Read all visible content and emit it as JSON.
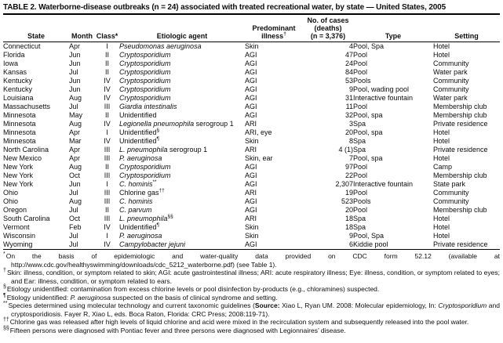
{
  "table": {
    "title": "TABLE 2. Waterborne-disease outbreaks (n = 24) associated with treated recreational water, by state — United States, 2005",
    "columns": [
      {
        "id": "state",
        "lines": [
          [
            {
              "t": "State"
            }
          ]
        ]
      },
      {
        "id": "month",
        "lines": [
          [
            {
              "t": "Month"
            }
          ]
        ]
      },
      {
        "id": "class",
        "lines": [
          [
            {
              "t": "Class*"
            }
          ]
        ]
      },
      {
        "id": "agent",
        "lines": [
          [
            {
              "t": "Etiologic agent"
            }
          ]
        ]
      },
      {
        "id": "illness",
        "lines": [
          [
            {
              "t": "Predominant"
            }
          ],
          [
            {
              "t": "illness"
            },
            {
              "t": "†",
              "sup": true
            }
          ]
        ]
      },
      {
        "id": "cases",
        "lines": [
          [
            {
              "t": "No. of cases"
            }
          ],
          [
            {
              "t": "(deaths)"
            }
          ],
          [
            {
              "t": "(n = 3,376)"
            }
          ]
        ]
      },
      {
        "id": "type",
        "lines": [
          [
            {
              "t": "Type"
            }
          ]
        ]
      },
      {
        "id": "setting",
        "lines": [
          [
            {
              "t": "Setting"
            }
          ]
        ]
      }
    ],
    "rows": [
      {
        "state": "Connecticut",
        "month": "Apr",
        "class": "I",
        "agent": [
          {
            "t": "Pseudomonas aeruginosa",
            "i": true
          }
        ],
        "illness": "Skin",
        "cases": "4",
        "type": "Pool, Spa",
        "setting": "Hotel"
      },
      {
        "state": "Florida",
        "month": "Jun",
        "class": "II",
        "agent": [
          {
            "t": "Cryptosporidium",
            "i": true
          }
        ],
        "illness": "AGI",
        "cases": "47",
        "type": "Pool",
        "setting": "Hotel"
      },
      {
        "state": "Iowa",
        "month": "Jun",
        "class": "II",
        "agent": [
          {
            "t": "Cryptosporidium",
            "i": true
          }
        ],
        "illness": "AGI",
        "cases": "24",
        "type": "Pool",
        "setting": "Community"
      },
      {
        "state": "Kansas",
        "month": "Jul",
        "class": "II",
        "agent": [
          {
            "t": "Cryptosporidium",
            "i": true
          }
        ],
        "illness": "AGI",
        "cases": "84",
        "type": "Pool",
        "setting": "Water park"
      },
      {
        "state": "Kentucky",
        "month": "Jun",
        "class": "IV",
        "agent": [
          {
            "t": "Cryptosporidium",
            "i": true
          }
        ],
        "illness": "AGI",
        "cases": "53",
        "type": "Pools",
        "setting": "Community"
      },
      {
        "state": "Kentucky",
        "month": "Jun",
        "class": "IV",
        "agent": [
          {
            "t": "Cryptosporidium",
            "i": true
          }
        ],
        "illness": "AGI",
        "cases": "9",
        "type": "Pool, wading pool",
        "setting": "Community"
      },
      {
        "state": "Louisiana",
        "month": "Aug",
        "class": "IV",
        "agent": [
          {
            "t": "Cryptosporidium",
            "i": true
          }
        ],
        "illness": "AGI",
        "cases": "31",
        "type": "Interactive fountain",
        "setting": "Water park"
      },
      {
        "state": "Massachusetts",
        "month": "Jul",
        "class": "III",
        "agent": [
          {
            "t": "Giardia intestinalis",
            "i": true
          }
        ],
        "illness": "AGI",
        "cases": "11",
        "type": "Pool",
        "setting": "Membership club"
      },
      {
        "state": "Minnesota",
        "month": "May",
        "class": "II",
        "agent": [
          {
            "t": "Unidentified"
          }
        ],
        "illness": "AGI",
        "cases": "32",
        "type": "Pool, spa",
        "setting": "Membership club"
      },
      {
        "state": "Minnesota",
        "month": "Aug",
        "class": "IV",
        "agent": [
          {
            "t": "Legionella pneumophila",
            "i": true
          },
          {
            "t": " serogroup 1"
          }
        ],
        "illness": "ARI",
        "cases": "3",
        "type": "Spa",
        "setting": "Private residence"
      },
      {
        "state": "Minnesota",
        "month": "Apr",
        "class": "I",
        "agent": [
          {
            "t": "Unidentified"
          },
          {
            "t": "§",
            "sup": true
          }
        ],
        "illness": "ARI, eye",
        "cases": "20",
        "type": "Pool, spa",
        "setting": "Hotel"
      },
      {
        "state": "Minnesota",
        "month": "Mar",
        "class": "IV",
        "agent": [
          {
            "t": "Unidentified"
          },
          {
            "t": "¶",
            "sup": true
          }
        ],
        "illness": "Skin",
        "cases": "8",
        "type": "Spa",
        "setting": "Hotel"
      },
      {
        "state": "North Carolina",
        "month": "Apr",
        "class": "III",
        "agent": [
          {
            "t": "L. pneumophila",
            "i": true
          },
          {
            "t": " serogroup 1"
          }
        ],
        "illness": "ARI",
        "cases": "4 (1)",
        "type": "Spa",
        "setting": "Private residence"
      },
      {
        "state": "New Mexico",
        "month": "Apr",
        "class": "III",
        "agent": [
          {
            "t": "P. aeruginosa",
            "i": true
          }
        ],
        "illness": "Skin, ear",
        "cases": "7",
        "type": "Pool, spa",
        "setting": "Hotel"
      },
      {
        "state": "New York",
        "month": "Aug",
        "class": "II",
        "agent": [
          {
            "t": "Cryptosporidium",
            "i": true
          }
        ],
        "illness": "AGI",
        "cases": "97",
        "type": "Pool",
        "setting": "Camp"
      },
      {
        "state": "New York",
        "month": "Oct",
        "class": "III",
        "agent": [
          {
            "t": "Cryptosporidium",
            "i": true
          }
        ],
        "illness": "AGI",
        "cases": "22",
        "type": "Pool",
        "setting": "Membership club"
      },
      {
        "state": "New York",
        "month": "Jun",
        "class": "I",
        "agent": [
          {
            "t": "C. hominis",
            "i": true
          },
          {
            "t": "**",
            "sup": true
          }
        ],
        "illness": "AGI",
        "cases": "2,307",
        "type": "Interactive fountain",
        "setting": "State park"
      },
      {
        "state": "Ohio",
        "month": "Jul",
        "class": "III",
        "agent": [
          {
            "t": "Chlorine gas"
          },
          {
            "t": "††",
            "sup": true
          }
        ],
        "illness": "ARI",
        "cases": "19",
        "type": "Pool",
        "setting": "Community"
      },
      {
        "state": "Ohio",
        "month": "Aug",
        "class": "III",
        "agent": [
          {
            "t": "C. hominis",
            "i": true
          }
        ],
        "illness": "AGI",
        "cases": "523",
        "type": "Pools",
        "setting": "Community"
      },
      {
        "state": "Oregon",
        "month": "Jul",
        "class": "II",
        "agent": [
          {
            "t": "C. parvum",
            "i": true
          }
        ],
        "illness": "AGI",
        "cases": "20",
        "type": "Pool",
        "setting": "Membership club"
      },
      {
        "state": "South Carolina",
        "month": "Oct",
        "class": "III",
        "agent": [
          {
            "t": "L. pneumophila",
            "i": true
          },
          {
            "t": "§§",
            "sup": true
          }
        ],
        "illness": "ARI",
        "cases": "18",
        "type": "Spa",
        "setting": "Hotel"
      },
      {
        "state": "Vermont",
        "month": "Feb",
        "class": "IV",
        "agent": [
          {
            "t": "Unidentified"
          },
          {
            "t": "¶",
            "sup": true
          }
        ],
        "illness": "Skin",
        "cases": "18",
        "type": "Spa",
        "setting": "Hotel"
      },
      {
        "state": "Wisconsin",
        "month": "Jul",
        "class": "I",
        "agent": [
          {
            "t": "P. aeruginosa",
            "i": true
          }
        ],
        "illness": "Skin",
        "cases": "9",
        "type": "Pool, Spa",
        "setting": "Hotel"
      },
      {
        "state": "Wyoming",
        "month": "Jul",
        "class": "IV",
        "agent": [
          {
            "t": "Campylobacter jejuni",
            "i": true
          }
        ],
        "illness": "AGI",
        "cases": "6",
        "type": "Kiddie pool",
        "setting": "Private residence"
      }
    ]
  },
  "footnotes": [
    {
      "symbol": "*",
      "parts": [
        {
          "t": "On the basis of epidemiologic and water-quality data provided on CDC form 52.12 (available at http://www.cdc.gov/healthyswimming/downloads/cdc_5212_waterborne.pdf) (see Table 1)."
        }
      ]
    },
    {
      "symbol": "†",
      "parts": [
        {
          "t": "Skin: illness, condition, or symptom related to skin; AGI: acute gastrointestinal illness; ARI: acute respiratory illness; Eye: illness, condition, or symptom related to eyes; and Ear: illness, condition, or symptom related to ears."
        }
      ]
    },
    {
      "symbol": "§",
      "parts": [
        {
          "t": "Etiology unidentified: contamination from excess chlorine levels or pool disinfection by-products (e.g., chloramines) suspected."
        }
      ]
    },
    {
      "symbol": "¶",
      "parts": [
        {
          "t": "Etiology unidentified: "
        },
        {
          "t": "P. aeruginosa",
          "i": true
        },
        {
          "t": " suspected on the basis of clinical syndrome and setting."
        }
      ]
    },
    {
      "symbol": "**",
      "parts": [
        {
          "t": "Species determined using molecular technology and current taxonomic guidelines ("
        },
        {
          "t": "Source:",
          "b": true
        },
        {
          "t": " Xiao L, Ryan UM. 2008: Molecular epidemiology, In: "
        },
        {
          "t": "Cryptosporidium",
          "i": true
        },
        {
          "t": " and cryptosporidiosis. Fayer R, Xiao L, eds. Boca Raton, Florida: CRC Press; 2008:119-71)."
        }
      ]
    },
    {
      "symbol": "††",
      "parts": [
        {
          "t": "Chlorine gas was released after high levels of liquid chlorine and acid were mixed in the recirculation system and subsequently released into the pool water."
        }
      ]
    },
    {
      "symbol": "§§",
      "parts": [
        {
          "t": "Fifteen persons were diagnosed with Pontiac fever and three persons were diagnosed with Legionnaires’ disease."
        }
      ]
    }
  ]
}
